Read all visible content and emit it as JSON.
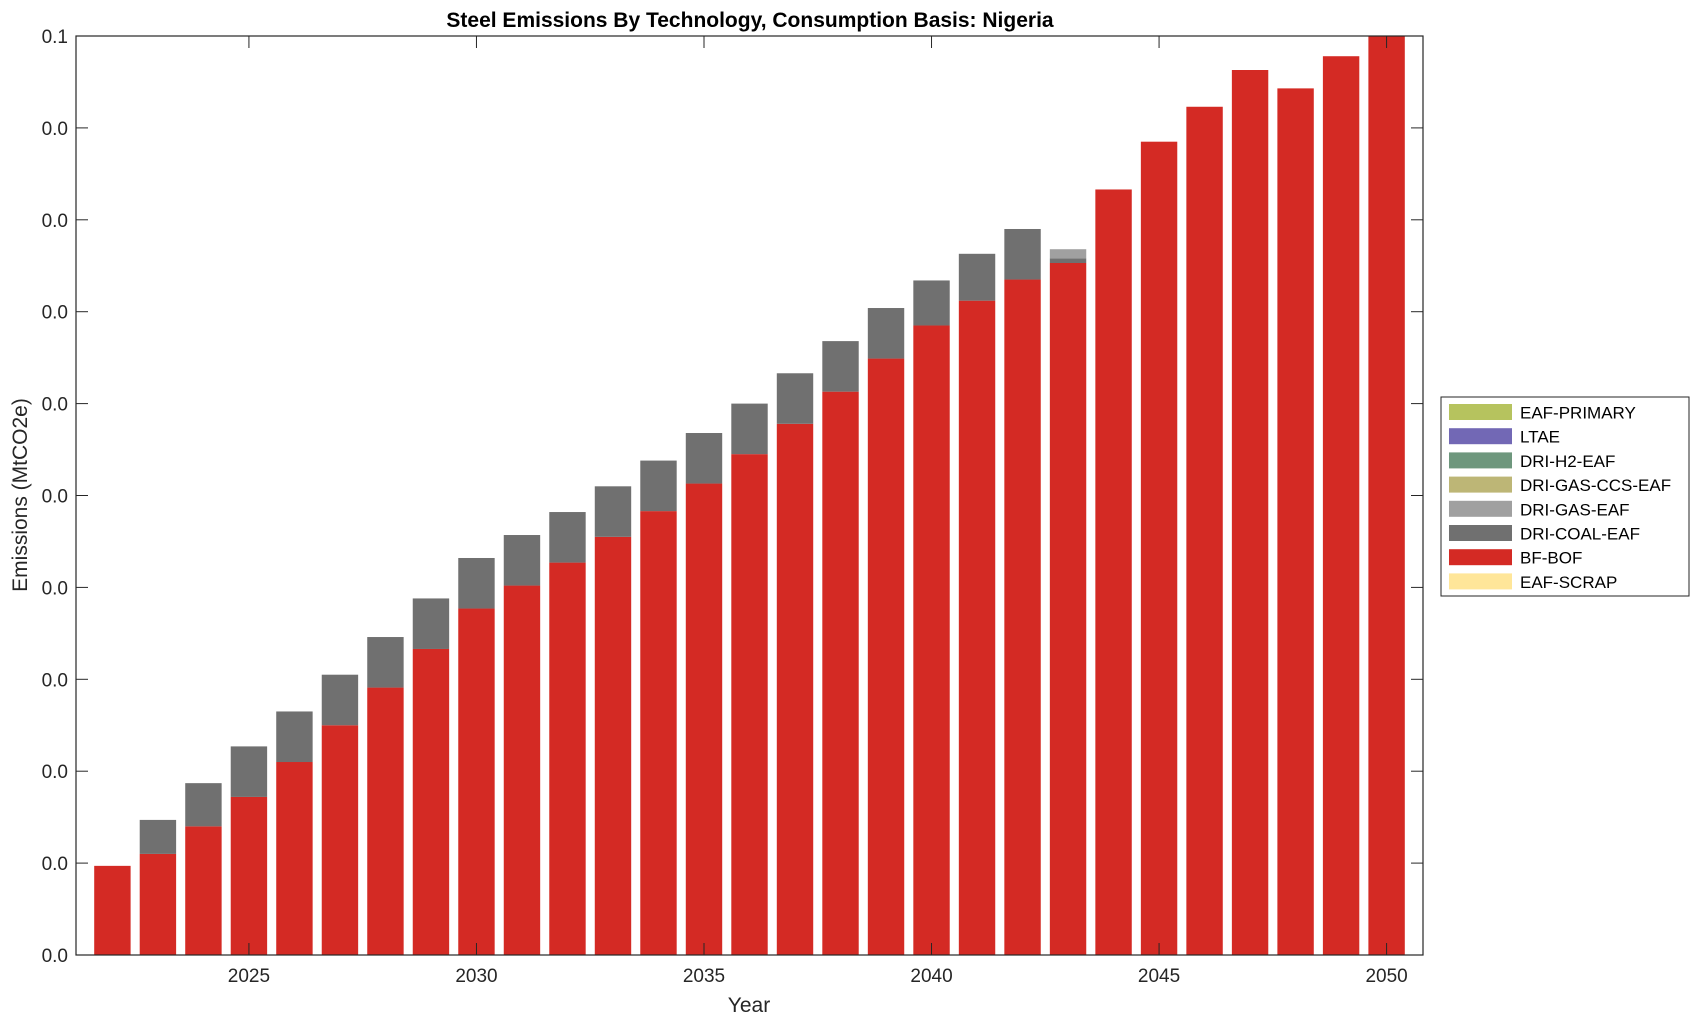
{
  "chart_data": {
    "type": "bar",
    "stacked": true,
    "title": "Steel Emissions By Technology, Consumption Basis: Nigeria",
    "xlabel": "Year",
    "ylabel": "Emissions (MtCO2e)",
    "x_ticks": [
      2025,
      2030,
      2035,
      2040,
      2045,
      2050
    ],
    "y_tick_labels": [
      "0.0",
      "0.0",
      "0.0",
      "0.0",
      "0.0",
      "0.0",
      "0.0",
      "0.0",
      "0.0",
      "0.0",
      "0.1"
    ],
    "ylim": [
      0,
      0.1
    ],
    "xlim": [
      2021.2,
      2050.8
    ],
    "years": [
      2022,
      2023,
      2024,
      2025,
      2026,
      2027,
      2028,
      2029,
      2030,
      2031,
      2032,
      2033,
      2034,
      2035,
      2036,
      2037,
      2038,
      2039,
      2040,
      2041,
      2042,
      2043,
      2044,
      2045,
      2046,
      2047,
      2048,
      2049,
      2050
    ],
    "grid": false,
    "legend_position": "right",
    "series": [
      {
        "name": "EAF-SCRAP",
        "color": "#FFE699",
        "values": [
          0,
          0,
          0,
          0,
          0,
          0,
          0,
          0,
          0,
          0,
          0,
          0,
          0,
          0,
          0,
          0,
          0,
          0,
          0,
          0,
          0,
          0,
          0,
          0,
          0,
          0,
          0,
          0,
          0
        ]
      },
      {
        "name": "BF-BOF",
        "color": "#D42A24",
        "values": [
          0.0097,
          0.011,
          0.014,
          0.0172,
          0.021,
          0.025,
          0.0291,
          0.0333,
          0.0377,
          0.0402,
          0.0427,
          0.0455,
          0.0483,
          0.0513,
          0.0545,
          0.0578,
          0.0613,
          0.0649,
          0.0685,
          0.0712,
          0.0735,
          0.0753,
          0.0833,
          0.0885,
          0.0923,
          0.0963,
          0.0943,
          0.0978,
          0.1005
        ]
      },
      {
        "name": "DRI-COAL-EAF",
        "color": "#707070",
        "values": [
          0,
          0.0037,
          0.0047,
          0.0055,
          0.0055,
          0.0055,
          0.0055,
          0.0055,
          0.0055,
          0.0055,
          0.0055,
          0.0055,
          0.0055,
          0.0055,
          0.0055,
          0.0055,
          0.0055,
          0.0055,
          0.0049,
          0.0051,
          0.0055,
          0.0005,
          0,
          0,
          0,
          0,
          0,
          0,
          0
        ]
      },
      {
        "name": "DRI-GAS-EAF",
        "color": "#A0A0A0",
        "values": [
          0,
          0,
          0,
          0,
          0,
          0,
          0,
          0,
          0,
          0,
          0,
          0,
          0,
          0,
          0,
          0,
          0,
          0,
          0,
          0,
          0,
          0.001,
          0,
          0,
          0,
          0,
          0,
          0,
          0
        ]
      },
      {
        "name": "DRI-GAS-CCS-EAF",
        "color": "#BDB676",
        "values": [
          0,
          0,
          0,
          0,
          0,
          0,
          0,
          0,
          0,
          0,
          0,
          0,
          0,
          0,
          0,
          0,
          0,
          0,
          0,
          0,
          0,
          0,
          0,
          0,
          0,
          0,
          0,
          0,
          0
        ]
      },
      {
        "name": "DRI-H2-EAF",
        "color": "#6E977D",
        "values": [
          0,
          0,
          0,
          0,
          0,
          0,
          0,
          0,
          0,
          0,
          0,
          0,
          0,
          0,
          0,
          0,
          0,
          0,
          0,
          0,
          0,
          0,
          0,
          0,
          0,
          0,
          0,
          0,
          0
        ]
      },
      {
        "name": "LTAE",
        "color": "#7268B5",
        "values": [
          0,
          0,
          0,
          0,
          0,
          0,
          0,
          0,
          0,
          0,
          0,
          0,
          0,
          0,
          0,
          0,
          0,
          0,
          0,
          0,
          0,
          0,
          0,
          0,
          0,
          0,
          0,
          0,
          0
        ]
      },
      {
        "name": "EAF-PRIMARY",
        "color": "#B6C35E",
        "values": [
          0,
          0,
          0,
          0,
          0,
          0,
          0,
          0,
          0,
          0,
          0,
          0,
          0,
          0,
          0,
          0,
          0,
          0,
          0,
          0,
          0,
          0,
          0,
          0,
          0,
          0,
          0,
          0,
          0
        ]
      }
    ],
    "legend_order": [
      "EAF-PRIMARY",
      "LTAE",
      "DRI-H2-EAF",
      "DRI-GAS-CCS-EAF",
      "DRI-GAS-EAF",
      "DRI-COAL-EAF",
      "BF-BOF",
      "EAF-SCRAP"
    ]
  }
}
